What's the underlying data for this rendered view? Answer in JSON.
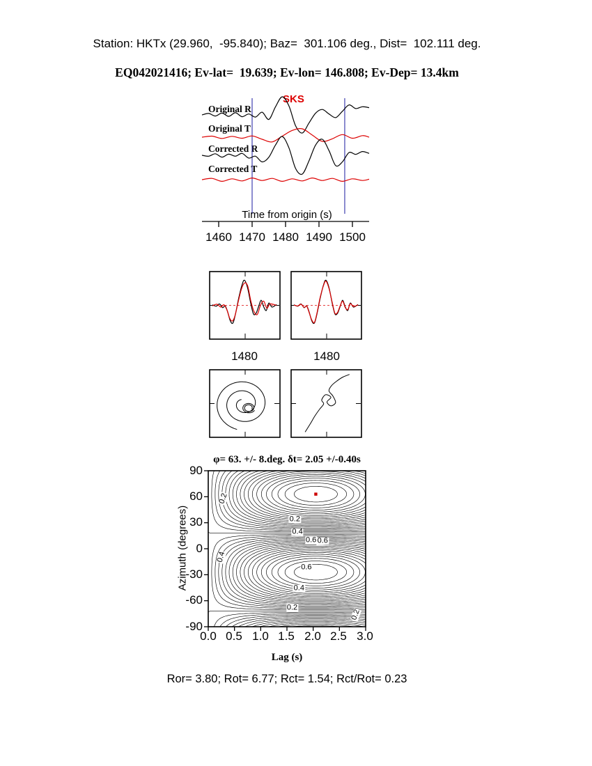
{
  "header": {
    "line1": "Station: HKTx (29.960,  -95.840); Baz=  301.106 deg., Dist=  102.111 deg.",
    "line2": "EQ042021416; Ev-lat=  19.639; Ev-lon= 146.808; Ev-Dep= 13.4km"
  },
  "footer": {
    "text": "Ror= 3.80; Rot= 6.77; Rct= 1.54; Rct/Rot= 0.23"
  },
  "chart_data": [
    {
      "id": "waveforms",
      "type": "line",
      "title": "SKS",
      "title_color": "#dd0000",
      "xlabel": "Time from origin (s)",
      "x_range": [
        1455,
        1505
      ],
      "x_ticks": [
        1460,
        1470,
        1480,
        1490,
        1500
      ],
      "window": [
        1470,
        1497.7
      ],
      "window_color": "#4040b0",
      "series": [
        {
          "name": "Original R",
          "color": "#000000",
          "baseline": 30,
          "amp": 26,
          "points": [
            [
              1455,
              0
            ],
            [
              1457,
              0.08
            ],
            [
              1459,
              -0.06
            ],
            [
              1461,
              0.1
            ],
            [
              1463,
              -0.08
            ],
            [
              1465,
              0.12
            ],
            [
              1467,
              -0.1
            ],
            [
              1469,
              0.05
            ],
            [
              1471,
              -0.12
            ],
            [
              1473,
              0.15
            ],
            [
              1475,
              -0.25
            ],
            [
              1477,
              0.45
            ],
            [
              1479,
              1
            ],
            [
              1481,
              0.5
            ],
            [
              1483,
              -0.6
            ],
            [
              1485,
              -1
            ],
            [
              1487,
              -0.45
            ],
            [
              1489,
              0.1
            ],
            [
              1491,
              0.3
            ],
            [
              1493,
              0.05
            ],
            [
              1495,
              -0.15
            ],
            [
              1497,
              0.2
            ],
            [
              1499,
              0.55
            ],
            [
              1501,
              0.35
            ],
            [
              1503,
              0.45
            ],
            [
              1505,
              0.4
            ]
          ]
        },
        {
          "name": "Original T",
          "color": "#dd0000",
          "baseline": 62,
          "amp": 15,
          "points": [
            [
              1455,
              0
            ],
            [
              1458,
              0.1
            ],
            [
              1461,
              -0.12
            ],
            [
              1464,
              0.08
            ],
            [
              1467,
              -0.1
            ],
            [
              1470,
              0.12
            ],
            [
              1473,
              -0.2
            ],
            [
              1476,
              -0.45
            ],
            [
              1479,
              0.1
            ],
            [
              1482,
              0.65
            ],
            [
              1485,
              0.8
            ],
            [
              1488,
              0.2
            ],
            [
              1491,
              -0.4
            ],
            [
              1494,
              -0.15
            ],
            [
              1497,
              0.25
            ],
            [
              1500,
              -0.1
            ],
            [
              1503,
              0.15
            ],
            [
              1505,
              0
            ]
          ]
        },
        {
          "name": "Corrected R",
          "color": "#000000",
          "baseline": 88,
          "amp": 27,
          "points": [
            [
              1455,
              0
            ],
            [
              1457,
              -0.05
            ],
            [
              1459,
              0.08
            ],
            [
              1461,
              -0.1
            ],
            [
              1463,
              0.06
            ],
            [
              1465,
              -0.05
            ],
            [
              1467,
              0.1
            ],
            [
              1469,
              -0.15
            ],
            [
              1471,
              -0.05
            ],
            [
              1473,
              -0.35
            ],
            [
              1475,
              -0.1
            ],
            [
              1477,
              0.55
            ],
            [
              1479,
              1
            ],
            [
              1481,
              0.4
            ],
            [
              1483,
              -0.7
            ],
            [
              1485,
              -1
            ],
            [
              1487,
              -0.3
            ],
            [
              1489,
              0.55
            ],
            [
              1491,
              0.85
            ],
            [
              1493,
              0.25
            ],
            [
              1495,
              -0.55
            ],
            [
              1497,
              -0.35
            ],
            [
              1499,
              0.15
            ],
            [
              1501,
              0.05
            ],
            [
              1503,
              0.2
            ],
            [
              1505,
              0.1
            ]
          ]
        },
        {
          "name": "Corrected T",
          "color": "#dd0000",
          "baseline": 123,
          "amp": 12,
          "points": [
            [
              1455,
              0
            ],
            [
              1458,
              0.15
            ],
            [
              1461,
              -0.2
            ],
            [
              1464,
              0.1
            ],
            [
              1467,
              -0.15
            ],
            [
              1470,
              0.2
            ],
            [
              1473,
              -0.1
            ],
            [
              1476,
              0.15
            ],
            [
              1479,
              -0.2
            ],
            [
              1482,
              0.1
            ],
            [
              1485,
              -0.15
            ],
            [
              1488,
              0.2
            ],
            [
              1491,
              -0.1
            ],
            [
              1494,
              0.15
            ],
            [
              1497,
              -0.2
            ],
            [
              1500,
              0.1
            ],
            [
              1503,
              -0.1
            ],
            [
              1505,
              0.05
            ]
          ]
        }
      ]
    },
    {
      "id": "window-compare-original",
      "type": "line",
      "x_tick_label": "1480",
      "series": [
        {
          "name": "fast",
          "color": "#000000",
          "points": [
            [
              0,
              0.02
            ],
            [
              0.06,
              -0.03
            ],
            [
              0.11,
              0.05
            ],
            [
              0.16,
              -0.08
            ],
            [
              0.2,
              -0.02
            ],
            [
              0.24,
              -0.25
            ],
            [
              0.28,
              -0.55
            ],
            [
              0.32,
              -0.62
            ],
            [
              0.36,
              -0.3
            ],
            [
              0.41,
              0.25
            ],
            [
              0.46,
              0.7
            ],
            [
              0.5,
              0.88
            ],
            [
              0.55,
              0.6
            ],
            [
              0.6,
              0.05
            ],
            [
              0.64,
              -0.3
            ],
            [
              0.68,
              -0.28
            ],
            [
              0.72,
              -0.05
            ],
            [
              0.76,
              0.18
            ],
            [
              0.8,
              -0.05
            ],
            [
              0.84,
              -0.18
            ],
            [
              0.88,
              0.08
            ],
            [
              0.93,
              -0.06
            ],
            [
              1,
              0.03
            ]
          ]
        },
        {
          "name": "slow",
          "color": "#dd0000",
          "points": [
            [
              0,
              -0.02
            ],
            [
              0.07,
              0.04
            ],
            [
              0.13,
              -0.06
            ],
            [
              0.18,
              0.02
            ],
            [
              0.23,
              -0.18
            ],
            [
              0.27,
              -0.45
            ],
            [
              0.31,
              -0.55
            ],
            [
              0.35,
              -0.38
            ],
            [
              0.4,
              0.1
            ],
            [
              0.45,
              0.55
            ],
            [
              0.5,
              0.78
            ],
            [
              0.55,
              0.68
            ],
            [
              0.6,
              0.15
            ],
            [
              0.65,
              -0.22
            ],
            [
              0.7,
              -0.32
            ],
            [
              0.75,
              0
            ],
            [
              0.8,
              0.15
            ],
            [
              0.85,
              -0.1
            ],
            [
              0.9,
              0.05
            ],
            [
              1,
              0
            ]
          ]
        }
      ]
    },
    {
      "id": "window-compare-corrected",
      "type": "line",
      "x_tick_label": "1480",
      "series": [
        {
          "name": "fast",
          "color": "#000000",
          "points": [
            [
              0,
              0.02
            ],
            [
              0.06,
              -0.03
            ],
            [
              0.11,
              0.05
            ],
            [
              0.16,
              -0.08
            ],
            [
              0.2,
              -0.02
            ],
            [
              0.24,
              -0.25
            ],
            [
              0.28,
              -0.55
            ],
            [
              0.32,
              -0.62
            ],
            [
              0.36,
              -0.3
            ],
            [
              0.41,
              0.25
            ],
            [
              0.46,
              0.7
            ],
            [
              0.5,
              0.88
            ],
            [
              0.55,
              0.6
            ],
            [
              0.6,
              0.05
            ],
            [
              0.64,
              -0.3
            ],
            [
              0.68,
              -0.28
            ],
            [
              0.72,
              -0.05
            ],
            [
              0.76,
              0.18
            ],
            [
              0.8,
              -0.05
            ],
            [
              0.84,
              -0.18
            ],
            [
              0.88,
              0.08
            ],
            [
              0.93,
              -0.06
            ],
            [
              1,
              0.03
            ]
          ]
        },
        {
          "name": "slow",
          "color": "#dd0000",
          "points": [
            [
              0,
              0.01
            ],
            [
              0.06,
              -0.02
            ],
            [
              0.11,
              0.04
            ],
            [
              0.16,
              -0.07
            ],
            [
              0.2,
              -0.03
            ],
            [
              0.24,
              -0.27
            ],
            [
              0.28,
              -0.52
            ],
            [
              0.32,
              -0.6
            ],
            [
              0.36,
              -0.27
            ],
            [
              0.41,
              0.28
            ],
            [
              0.46,
              0.68
            ],
            [
              0.5,
              0.85
            ],
            [
              0.55,
              0.57
            ],
            [
              0.6,
              0.08
            ],
            [
              0.64,
              -0.28
            ],
            [
              0.68,
              -0.25
            ],
            [
              0.72,
              -0.03
            ],
            [
              0.76,
              0.15
            ],
            [
              0.8,
              -0.07
            ],
            [
              0.84,
              -0.15
            ],
            [
              0.88,
              0.06
            ],
            [
              0.93,
              -0.04
            ],
            [
              1,
              0.02
            ]
          ]
        }
      ]
    },
    {
      "id": "particle-motion-original",
      "type": "scatter",
      "curves": [
        {
          "kind": "spiral",
          "cx": 0.48,
          "cy": 0.5,
          "rx": 0.43,
          "ry": 0.4,
          "turns": 2.4,
          "decay": 0.82,
          "phase": 1.8
        },
        {
          "kind": "spiral",
          "cx": 0.56,
          "cy": 0.56,
          "rx": 0.1,
          "ry": 0.08,
          "turns": 2.0,
          "decay": 0.5,
          "phase": 0.5
        }
      ]
    },
    {
      "id": "particle-motion-corrected",
      "type": "scatter",
      "curves": [
        {
          "kind": "poly",
          "points": [
            [
              0.18,
              0.93
            ],
            [
              0.26,
              0.8
            ],
            [
              0.33,
              0.68
            ],
            [
              0.4,
              0.58
            ],
            [
              0.46,
              0.5
            ],
            [
              0.43,
              0.44
            ],
            [
              0.49,
              0.36
            ],
            [
              0.57,
              0.4
            ],
            [
              0.51,
              0.47
            ],
            [
              0.57,
              0.53
            ],
            [
              0.64,
              0.48
            ],
            [
              0.6,
              0.38
            ],
            [
              0.54,
              0.3
            ],
            [
              0.58,
              0.22
            ],
            [
              0.66,
              0.15
            ],
            [
              0.75,
              0.09
            ],
            [
              0.85,
              0.05
            ]
          ]
        }
      ]
    },
    {
      "id": "error-surface",
      "type": "heatmap",
      "title": "φ= 63. +/- 8.deg. δt= 2.05 +/-0.40s",
      "xlabel": "Lag (s)",
      "ylabel": "Azimuth (degrees)",
      "xlim": [
        0,
        3
      ],
      "ylim": [
        -90,
        90
      ],
      "x_ticks": [
        "0.0",
        "0.5",
        "1.0",
        "1.5",
        "2.0",
        "2.5",
        "3.0"
      ],
      "y_ticks": [
        90,
        60,
        30,
        0,
        -30,
        -60,
        -90
      ],
      "model": {
        "phi0": 63,
        "dt0": 2.05,
        "period_x": 4.1
      },
      "contour_levels_step": 0.05,
      "best_fit": {
        "lag": 2.05,
        "azimuth": 63
      },
      "marker_color": "#cc0000",
      "contour_labels": [
        {
          "text": "0.2",
          "lag": 0.29,
          "az": 58,
          "rot": -72
        },
        {
          "text": "0.2",
          "lag": 1.65,
          "az": 34,
          "rot": 0
        },
        {
          "text": "0.4",
          "lag": 1.7,
          "az": 19,
          "rot": 0
        },
        {
          "text": "0.6",
          "lag": 1.96,
          "az": 10,
          "rot": 0
        },
        {
          "text": "0.6",
          "lag": 2.18,
          "az": 9,
          "rot": 0
        },
        {
          "text": "0.4",
          "lag": 0.25,
          "az": -10,
          "rot": -75
        },
        {
          "text": "0.6",
          "lag": 1.87,
          "az": -22,
          "rot": 0
        },
        {
          "text": "0.4",
          "lag": 1.73,
          "az": -46,
          "rot": 0
        },
        {
          "text": "0.2",
          "lag": 1.6,
          "az": -68,
          "rot": 0
        },
        {
          "text": "0.2",
          "lag": 2.81,
          "az": -76,
          "rot": -70
        }
      ]
    }
  ]
}
